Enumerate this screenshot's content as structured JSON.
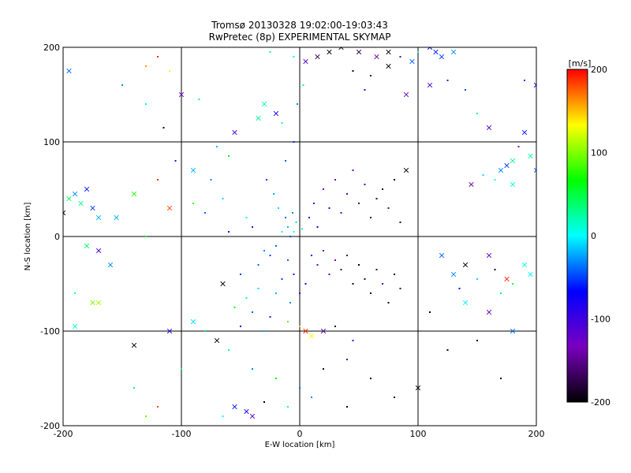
{
  "chart_data": {
    "type": "scatter",
    "title": "Tromsø 20130328 19:02:00-19:03:43",
    "subtitle": "RwPretec (8p) EXPERIMENTAL SKYMAP",
    "xlabel": "E-W location [km]",
    "ylabel": "N-S location [km]",
    "xlim": [
      -200,
      200
    ],
    "ylim": [
      -200,
      200
    ],
    "x_ticks": [
      -200,
      -100,
      0,
      100,
      200
    ],
    "y_ticks": [
      -200,
      -100,
      0,
      100,
      200
    ],
    "x_tick_labels": [
      "-200",
      "-100",
      "0",
      "100",
      "200"
    ],
    "y_tick_labels": [
      "-200",
      "-100",
      "0",
      "100",
      "200"
    ],
    "grid": true,
    "color_scale": {
      "label": "[m/s]",
      "range": [
        -200,
        200
      ],
      "ticks": [
        200,
        100,
        0,
        -100,
        -200
      ],
      "tick_labels": [
        "200",
        "100",
        "0",
        "-100",
        "-200"
      ],
      "stops": [
        "#000000",
        "#7a00c0",
        "#0000ff",
        "#00ffff",
        "#00ff00",
        "#ffff00",
        "#ff0000"
      ]
    },
    "marker_types": [
      "dot",
      "cross"
    ],
    "points": [
      {
        "x": -10,
        "y": 10,
        "v": -20,
        "m": "dot"
      },
      {
        "x": -5,
        "y": 5,
        "v": 5,
        "m": "dot"
      },
      {
        "x": -3,
        "y": 15,
        "v": -10,
        "m": "dot"
      },
      {
        "x": -12,
        "y": 20,
        "v": -40,
        "m": "dot"
      },
      {
        "x": -8,
        "y": 0,
        "v": -50,
        "m": "dot"
      },
      {
        "x": 2,
        "y": 8,
        "v": 20,
        "m": "dot"
      },
      {
        "x": -6,
        "y": 25,
        "v": -30,
        "m": "dot"
      },
      {
        "x": -15,
        "y": 5,
        "v": 10,
        "m": "dot"
      },
      {
        "x": -20,
        "y": -10,
        "v": -40,
        "m": "dot"
      },
      {
        "x": -25,
        "y": -20,
        "v": -50,
        "m": "dot"
      },
      {
        "x": -30,
        "y": -15,
        "v": -30,
        "m": "dot"
      },
      {
        "x": -18,
        "y": 30,
        "v": -10,
        "m": "dot"
      },
      {
        "x": -40,
        "y": 10,
        "v": -60,
        "m": "dot"
      },
      {
        "x": -35,
        "y": -30,
        "v": -40,
        "m": "dot"
      },
      {
        "x": -50,
        "y": -40,
        "v": -50,
        "m": "dot"
      },
      {
        "x": -45,
        "y": 20,
        "v": 0,
        "m": "dot"
      },
      {
        "x": -60,
        "y": 5,
        "v": -70,
        "m": "dot"
      },
      {
        "x": -22,
        "y": 45,
        "v": -20,
        "m": "dot"
      },
      {
        "x": -28,
        "y": 60,
        "v": -50,
        "m": "dot"
      },
      {
        "x": -12,
        "y": 80,
        "v": -40,
        "m": "dot"
      },
      {
        "x": -5,
        "y": 100,
        "v": -60,
        "m": "dot"
      },
      {
        "x": -15,
        "y": 120,
        "v": 10,
        "m": "dot"
      },
      {
        "x": -2,
        "y": 140,
        "v": -30,
        "m": "dot"
      },
      {
        "x": 3,
        "y": 160,
        "v": 30,
        "m": "dot"
      },
      {
        "x": -30,
        "y": 140,
        "v": 20,
        "m": "cross"
      },
      {
        "x": -35,
        "y": 125,
        "v": 30,
        "m": "cross"
      },
      {
        "x": -20,
        "y": 130,
        "v": -80,
        "m": "cross"
      },
      {
        "x": -55,
        "y": 110,
        "v": -110,
        "m": "cross"
      },
      {
        "x": -70,
        "y": 95,
        "v": -20,
        "m": "dot"
      },
      {
        "x": -60,
        "y": 85,
        "v": 60,
        "m": "dot"
      },
      {
        "x": -75,
        "y": 60,
        "v": -30,
        "m": "dot"
      },
      {
        "x": -65,
        "y": 40,
        "v": -10,
        "m": "dot"
      },
      {
        "x": -90,
        "y": 35,
        "v": 80,
        "m": "dot"
      },
      {
        "x": -80,
        "y": 25,
        "v": -40,
        "m": "dot"
      },
      {
        "x": 8,
        "y": 20,
        "v": -90,
        "m": "dot"
      },
      {
        "x": 12,
        "y": 35,
        "v": -110,
        "m": "dot"
      },
      {
        "x": 15,
        "y": 10,
        "v": -80,
        "m": "dot"
      },
      {
        "x": 20,
        "y": 50,
        "v": -120,
        "m": "dot"
      },
      {
        "x": 25,
        "y": 30,
        "v": -100,
        "m": "dot"
      },
      {
        "x": 30,
        "y": 60,
        "v": -130,
        "m": "dot"
      },
      {
        "x": 35,
        "y": 25,
        "v": -110,
        "m": "dot"
      },
      {
        "x": 40,
        "y": 45,
        "v": -140,
        "m": "dot"
      },
      {
        "x": 45,
        "y": 70,
        "v": -120,
        "m": "dot"
      },
      {
        "x": 50,
        "y": 35,
        "v": -160,
        "m": "dot"
      },
      {
        "x": 55,
        "y": 55,
        "v": -150,
        "m": "dot"
      },
      {
        "x": 60,
        "y": 20,
        "v": -170,
        "m": "dot"
      },
      {
        "x": 65,
        "y": 40,
        "v": -180,
        "m": "dot"
      },
      {
        "x": 70,
        "y": 50,
        "v": -190,
        "m": "dot"
      },
      {
        "x": 75,
        "y": 30,
        "v": -150,
        "m": "dot"
      },
      {
        "x": 80,
        "y": 60,
        "v": -200,
        "m": "dot"
      },
      {
        "x": 85,
        "y": 15,
        "v": -180,
        "m": "dot"
      },
      {
        "x": 90,
        "y": 70,
        "v": -200,
        "m": "cross"
      },
      {
        "x": 10,
        "y": -20,
        "v": -100,
        "m": "dot"
      },
      {
        "x": 15,
        "y": -30,
        "v": -120,
        "m": "dot"
      },
      {
        "x": 20,
        "y": -15,
        "v": -110,
        "m": "dot"
      },
      {
        "x": 25,
        "y": -40,
        "v": -150,
        "m": "dot"
      },
      {
        "x": 30,
        "y": -25,
        "v": -130,
        "m": "dot"
      },
      {
        "x": 35,
        "y": -35,
        "v": -170,
        "m": "dot"
      },
      {
        "x": 40,
        "y": -20,
        "v": -160,
        "m": "dot"
      },
      {
        "x": 45,
        "y": -50,
        "v": -190,
        "m": "dot"
      },
      {
        "x": 50,
        "y": -30,
        "v": -200,
        "m": "dot"
      },
      {
        "x": 55,
        "y": -45,
        "v": -180,
        "m": "dot"
      },
      {
        "x": 60,
        "y": -60,
        "v": -200,
        "m": "dot"
      },
      {
        "x": 65,
        "y": -35,
        "v": -170,
        "m": "dot"
      },
      {
        "x": 70,
        "y": -50,
        "v": -150,
        "m": "dot"
      },
      {
        "x": 75,
        "y": -70,
        "v": -190,
        "m": "dot"
      },
      {
        "x": 80,
        "y": -40,
        "v": -200,
        "m": "dot"
      },
      {
        "x": 85,
        "y": -55,
        "v": -160,
        "m": "dot"
      },
      {
        "x": 5,
        "y": -50,
        "v": -80,
        "m": "dot"
      },
      {
        "x": -5,
        "y": -40,
        "v": -60,
        "m": "dot"
      },
      {
        "x": -10,
        "y": -25,
        "v": -40,
        "m": "dot"
      },
      {
        "x": -15,
        "y": -45,
        "v": -50,
        "m": "dot"
      },
      {
        "x": 0,
        "y": -60,
        "v": -90,
        "m": "dot"
      },
      {
        "x": -8,
        "y": -70,
        "v": -30,
        "m": "dot"
      },
      {
        "x": -20,
        "y": -60,
        "v": -20,
        "m": "dot"
      },
      {
        "x": -35,
        "y": -55,
        "v": -10,
        "m": "dot"
      },
      {
        "x": -45,
        "y": -65,
        "v": 20,
        "m": "dot"
      },
      {
        "x": -55,
        "y": -75,
        "v": 70,
        "m": "dot"
      },
      {
        "x": -65,
        "y": -50,
        "v": -200,
        "m": "cross"
      },
      {
        "x": -40,
        "y": -80,
        "v": -40,
        "m": "dot"
      },
      {
        "x": -25,
        "y": -85,
        "v": -60,
        "m": "dot"
      },
      {
        "x": -10,
        "y": -90,
        "v": 90,
        "m": "dot"
      },
      {
        "x": 0,
        "y": -95,
        "v": 150,
        "m": "dot"
      },
      {
        "x": 5,
        "y": -100,
        "v": 190,
        "m": "cross"
      },
      {
        "x": 10,
        "y": -105,
        "v": 130,
        "m": "cross"
      },
      {
        "x": 20,
        "y": -100,
        "v": -150,
        "m": "cross"
      },
      {
        "x": 30,
        "y": -95,
        "v": -200,
        "m": "dot"
      },
      {
        "x": 45,
        "y": -110,
        "v": -100,
        "m": "dot"
      },
      {
        "x": -30,
        "y": -100,
        "v": -20,
        "m": "dot"
      },
      {
        "x": -50,
        "y": -95,
        "v": -80,
        "m": "dot"
      },
      {
        "x": -70,
        "y": -110,
        "v": -200,
        "m": "cross"
      },
      {
        "x": -80,
        "y": -100,
        "v": 40,
        "m": "dot"
      },
      {
        "x": -90,
        "y": -90,
        "v": -10,
        "m": "cross"
      },
      {
        "x": -60,
        "y": -120,
        "v": 10,
        "m": "dot"
      },
      {
        "x": -40,
        "y": -140,
        "v": -30,
        "m": "dot"
      },
      {
        "x": -20,
        "y": -150,
        "v": 60,
        "m": "dot"
      },
      {
        "x": 0,
        "y": -160,
        "v": -40,
        "m": "dot"
      },
      {
        "x": 20,
        "y": -140,
        "v": -180,
        "m": "dot"
      },
      {
        "x": 40,
        "y": -130,
        "v": -150,
        "m": "dot"
      },
      {
        "x": 60,
        "y": -150,
        "v": -200,
        "m": "dot"
      },
      {
        "x": 80,
        "y": -170,
        "v": -190,
        "m": "dot"
      },
      {
        "x": 100,
        "y": -160,
        "v": -200,
        "m": "cross"
      },
      {
        "x": -100,
        "y": -140,
        "v": 40,
        "m": "dot"
      },
      {
        "x": -120,
        "y": -180,
        "v": 180,
        "m": "dot"
      },
      {
        "x": -140,
        "y": -160,
        "v": -10,
        "m": "dot"
      },
      {
        "x": -130,
        "y": -190,
        "v": 90,
        "m": "dot"
      },
      {
        "x": -45,
        "y": -185,
        "v": -80,
        "m": "cross"
      },
      {
        "x": -40,
        "y": -190,
        "v": -110,
        "m": "cross"
      },
      {
        "x": -55,
        "y": -180,
        "v": -60,
        "m": "cross"
      },
      {
        "x": -65,
        "y": -190,
        "v": 0,
        "m": "dot"
      },
      {
        "x": 40,
        "y": -180,
        "v": -200,
        "m": "dot"
      },
      {
        "x": 10,
        "y": -170,
        "v": -30,
        "m": "dot"
      },
      {
        "x": -10,
        "y": -180,
        "v": 20,
        "m": "dot"
      },
      {
        "x": -30,
        "y": -175,
        "v": -200,
        "m": "dot"
      },
      {
        "x": 100,
        "y": 195,
        "v": 20,
        "m": "dot"
      },
      {
        "x": 110,
        "y": 200,
        "v": -70,
        "m": "cross"
      },
      {
        "x": 115,
        "y": 195,
        "v": -60,
        "m": "cross"
      },
      {
        "x": 120,
        "y": 190,
        "v": -50,
        "m": "cross"
      },
      {
        "x": 130,
        "y": 195,
        "v": -30,
        "m": "cross"
      },
      {
        "x": 95,
        "y": 185,
        "v": -40,
        "m": "cross"
      },
      {
        "x": 85,
        "y": 190,
        "v": -110,
        "m": "dot"
      },
      {
        "x": 75,
        "y": 195,
        "v": -200,
        "m": "cross"
      },
      {
        "x": 65,
        "y": 190,
        "v": -140,
        "m": "cross"
      },
      {
        "x": 50,
        "y": 195,
        "v": -180,
        "m": "cross"
      },
      {
        "x": 35,
        "y": 200,
        "v": -200,
        "m": "cross"
      },
      {
        "x": 25,
        "y": 195,
        "v": -200,
        "m": "cross"
      },
      {
        "x": 15,
        "y": 190,
        "v": -170,
        "m": "cross"
      },
      {
        "x": 5,
        "y": 185,
        "v": -110,
        "m": "cross"
      },
      {
        "x": -5,
        "y": 190,
        "v": 10,
        "m": "dot"
      },
      {
        "x": -25,
        "y": 195,
        "v": 30,
        "m": "dot"
      },
      {
        "x": 45,
        "y": 175,
        "v": -200,
        "m": "dot"
      },
      {
        "x": 60,
        "y": 170,
        "v": -170,
        "m": "dot"
      },
      {
        "x": 75,
        "y": 180,
        "v": -200,
        "m": "cross"
      },
      {
        "x": 55,
        "y": 155,
        "v": -90,
        "m": "dot"
      },
      {
        "x": 90,
        "y": 150,
        "v": -130,
        "m": "cross"
      },
      {
        "x": 110,
        "y": 160,
        "v": -110,
        "m": "cross"
      },
      {
        "x": 125,
        "y": 165,
        "v": -110,
        "m": "dot"
      },
      {
        "x": 140,
        "y": 155,
        "v": -50,
        "m": "dot"
      },
      {
        "x": 150,
        "y": 130,
        "v": 20,
        "m": "dot"
      },
      {
        "x": 160,
        "y": 115,
        "v": -110,
        "m": "cross"
      },
      {
        "x": 190,
        "y": 165,
        "v": -50,
        "m": "dot"
      },
      {
        "x": 200,
        "y": 160,
        "v": -80,
        "m": "cross"
      },
      {
        "x": 185,
        "y": 95,
        "v": -130,
        "m": "dot"
      },
      {
        "x": 195,
        "y": 85,
        "v": 20,
        "m": "cross"
      },
      {
        "x": 180,
        "y": 80,
        "v": 30,
        "m": "cross"
      },
      {
        "x": 175,
        "y": 75,
        "v": -50,
        "m": "cross"
      },
      {
        "x": 170,
        "y": 70,
        "v": -30,
        "m": "cross"
      },
      {
        "x": 165,
        "y": 60,
        "v": 10,
        "m": "dot"
      },
      {
        "x": 155,
        "y": 65,
        "v": -10,
        "m": "dot"
      },
      {
        "x": 145,
        "y": 55,
        "v": -140,
        "m": "cross"
      },
      {
        "x": 190,
        "y": 110,
        "v": -60,
        "m": "cross"
      },
      {
        "x": 200,
        "y": 70,
        "v": -40,
        "m": "cross"
      },
      {
        "x": 180,
        "y": 55,
        "v": 10,
        "m": "cross"
      },
      {
        "x": 160,
        "y": -20,
        "v": -120,
        "m": "cross"
      },
      {
        "x": 140,
        "y": -30,
        "v": -200,
        "m": "cross"
      },
      {
        "x": 130,
        "y": -40,
        "v": -30,
        "m": "cross"
      },
      {
        "x": 120,
        "y": -20,
        "v": -40,
        "m": "cross"
      },
      {
        "x": 150,
        "y": -45,
        "v": -10,
        "m": "dot"
      },
      {
        "x": 165,
        "y": -35,
        "v": -190,
        "m": "dot"
      },
      {
        "x": 175,
        "y": -45,
        "v": 190,
        "m": "cross"
      },
      {
        "x": 180,
        "y": -50,
        "v": 50,
        "m": "dot"
      },
      {
        "x": 190,
        "y": -30,
        "v": 10,
        "m": "cross"
      },
      {
        "x": 195,
        "y": -40,
        "v": 0,
        "m": "cross"
      },
      {
        "x": 170,
        "y": -60,
        "v": 40,
        "m": "dot"
      },
      {
        "x": 160,
        "y": -80,
        "v": -120,
        "m": "cross"
      },
      {
        "x": 140,
        "y": -70,
        "v": 0,
        "m": "cross"
      },
      {
        "x": 135,
        "y": -55,
        "v": -70,
        "m": "dot"
      },
      {
        "x": 180,
        "y": -100,
        "v": -40,
        "m": "cross"
      },
      {
        "x": 150,
        "y": -110,
        "v": -200,
        "m": "dot"
      },
      {
        "x": 170,
        "y": -150,
        "v": -200,
        "m": "dot"
      },
      {
        "x": 110,
        "y": -80,
        "v": -200,
        "m": "dot"
      },
      {
        "x": 125,
        "y": -120,
        "v": -200,
        "m": "dot"
      },
      {
        "x": -200,
        "y": 25,
        "v": -200,
        "m": "cross"
      },
      {
        "x": -195,
        "y": 40,
        "v": 40,
        "m": "cross"
      },
      {
        "x": -190,
        "y": 45,
        "v": -30,
        "m": "cross"
      },
      {
        "x": -185,
        "y": 35,
        "v": 30,
        "m": "cross"
      },
      {
        "x": -180,
        "y": 50,
        "v": -60,
        "m": "cross"
      },
      {
        "x": -175,
        "y": 30,
        "v": -50,
        "m": "cross"
      },
      {
        "x": -170,
        "y": 20,
        "v": -20,
        "m": "cross"
      },
      {
        "x": -155,
        "y": 20,
        "v": -20,
        "m": "cross"
      },
      {
        "x": -140,
        "y": 45,
        "v": 70,
        "m": "cross"
      },
      {
        "x": -130,
        "y": 0,
        "v": 60,
        "m": "dot"
      },
      {
        "x": -180,
        "y": -10,
        "v": 40,
        "m": "cross"
      },
      {
        "x": -170,
        "y": -15,
        "v": -110,
        "m": "cross"
      },
      {
        "x": -160,
        "y": -30,
        "v": -30,
        "m": "cross"
      },
      {
        "x": -190,
        "y": -60,
        "v": 10,
        "m": "dot"
      },
      {
        "x": -175,
        "y": -70,
        "v": 100,
        "m": "cross"
      },
      {
        "x": -170,
        "y": -70,
        "v": 110,
        "m": "cross"
      },
      {
        "x": -190,
        "y": -95,
        "v": 10,
        "m": "cross"
      },
      {
        "x": -140,
        "y": -115,
        "v": -200,
        "m": "cross"
      },
      {
        "x": -110,
        "y": -100,
        "v": -90,
        "m": "cross"
      },
      {
        "x": -195,
        "y": 175,
        "v": -40,
        "m": "cross"
      },
      {
        "x": -150,
        "y": 160,
        "v": -30,
        "m": "dot"
      },
      {
        "x": -130,
        "y": 180,
        "v": 160,
        "m": "dot"
      },
      {
        "x": -120,
        "y": 190,
        "v": 190,
        "m": "dot"
      },
      {
        "x": -110,
        "y": 175,
        "v": 130,
        "m": "dot"
      },
      {
        "x": -100,
        "y": 150,
        "v": -130,
        "m": "cross"
      },
      {
        "x": -85,
        "y": 145,
        "v": 30,
        "m": "dot"
      },
      {
        "x": -115,
        "y": 115,
        "v": -200,
        "m": "dot"
      },
      {
        "x": -130,
        "y": 140,
        "v": 10,
        "m": "dot"
      },
      {
        "x": -90,
        "y": 70,
        "v": -20,
        "m": "cross"
      },
      {
        "x": -105,
        "y": 80,
        "v": -110,
        "m": "dot"
      },
      {
        "x": -110,
        "y": 30,
        "v": 180,
        "m": "cross"
      },
      {
        "x": -120,
        "y": 60,
        "v": 190,
        "m": "dot"
      }
    ]
  }
}
